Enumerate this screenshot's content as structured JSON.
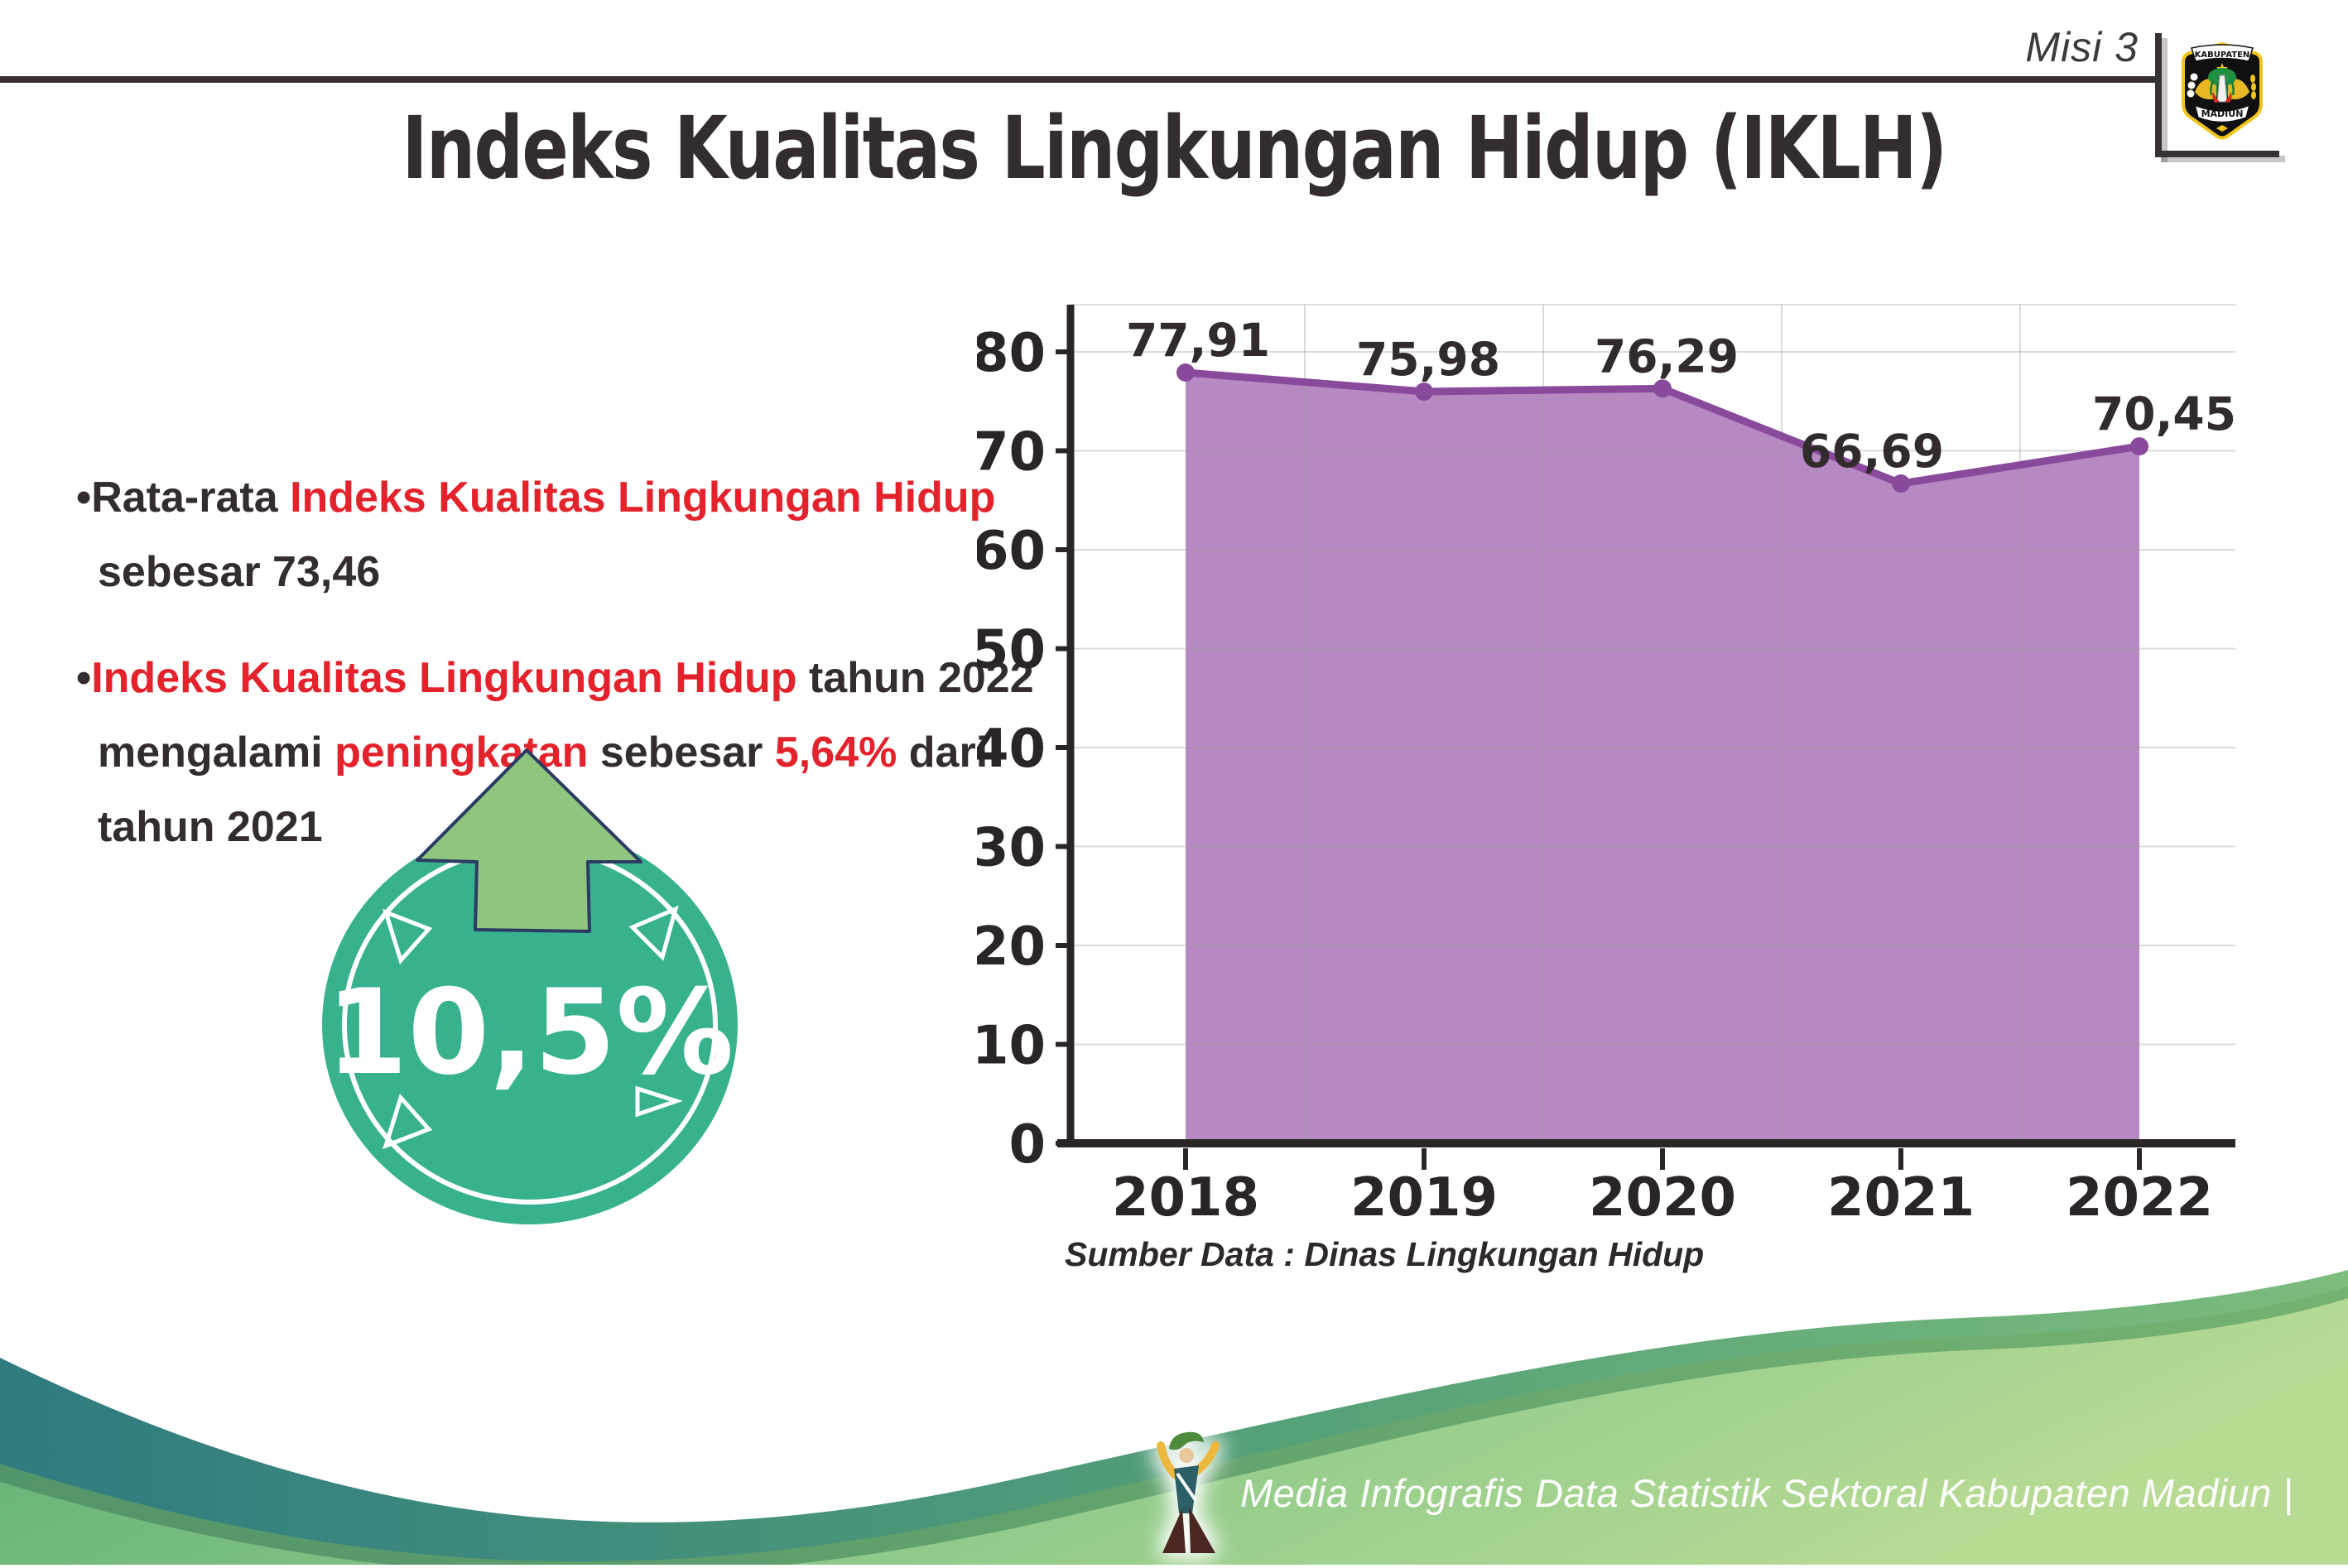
{
  "header": {
    "misi_label": "Misi 3",
    "title": "Indeks Kualitas Lingkungan Hidup (IKLH)",
    "logo": {
      "top_text": "KABUPATEN",
      "bottom_text": "MADIUN"
    }
  },
  "bullets": [
    {
      "lines": [
        [
          {
            "t": "•Rata-rata ",
            "c": "dark"
          },
          {
            "t": "Indeks Kualitas Lingkungan Hidup",
            "c": "red"
          }
        ],
        [
          {
            "t": "sebesar 73,46",
            "c": "dark"
          }
        ]
      ]
    },
    {
      "lines": [
        [
          {
            "t": "•",
            "c": "dark"
          },
          {
            "t": "Indeks Kualitas Lingkungan Hidup",
            "c": "red"
          },
          {
            "t": " tahun 2022",
            "c": "dark"
          }
        ],
        [
          {
            "t": "mengalami ",
            "c": "dark"
          },
          {
            "t": "peningkatan",
            "c": "red"
          },
          {
            "t": " sebesar ",
            "c": "dark"
          },
          {
            "t": "5,64%",
            "c": "red"
          },
          {
            "t": " dari",
            "c": "dark"
          }
        ],
        [
          {
            "t": "tahun 2021",
            "c": "dark"
          }
        ]
      ]
    }
  ],
  "badge": {
    "value": "10,5%"
  },
  "chart_data": {
    "type": "area",
    "categories": [
      "2018",
      "2019",
      "2020",
      "2021",
      "2022"
    ],
    "values": [
      77.91,
      75.98,
      76.29,
      66.69,
      70.45
    ],
    "value_labels": [
      "77,91",
      "75,98",
      "76,29",
      "66,69",
      "70,45"
    ],
    "title": "",
    "xlabel": "",
    "ylabel": "",
    "ylim": [
      0,
      80
    ],
    "ytick_step": 10,
    "grid": true,
    "legend": false,
    "line_color": "#8a4a9c",
    "fill_color": "#b789c3",
    "axis_color": "#2b2626",
    "label_color": "#322b2b"
  },
  "source_note": "Sumber Data : Dinas Lingkungan Hidup",
  "footer": {
    "caption": "Media Infografis Data Statistik Sektoral Kabupaten Madiun |"
  },
  "colors": {
    "red_highlight": "#e4222b",
    "dark_text": "#342d2d",
    "badge_teal": "#38b28e",
    "arrow_green": "#8fc57e",
    "arrow_outline_navy": "#2c3b63",
    "wave_teal": "#2f7b80",
    "wave_green": "#8cc98a"
  }
}
